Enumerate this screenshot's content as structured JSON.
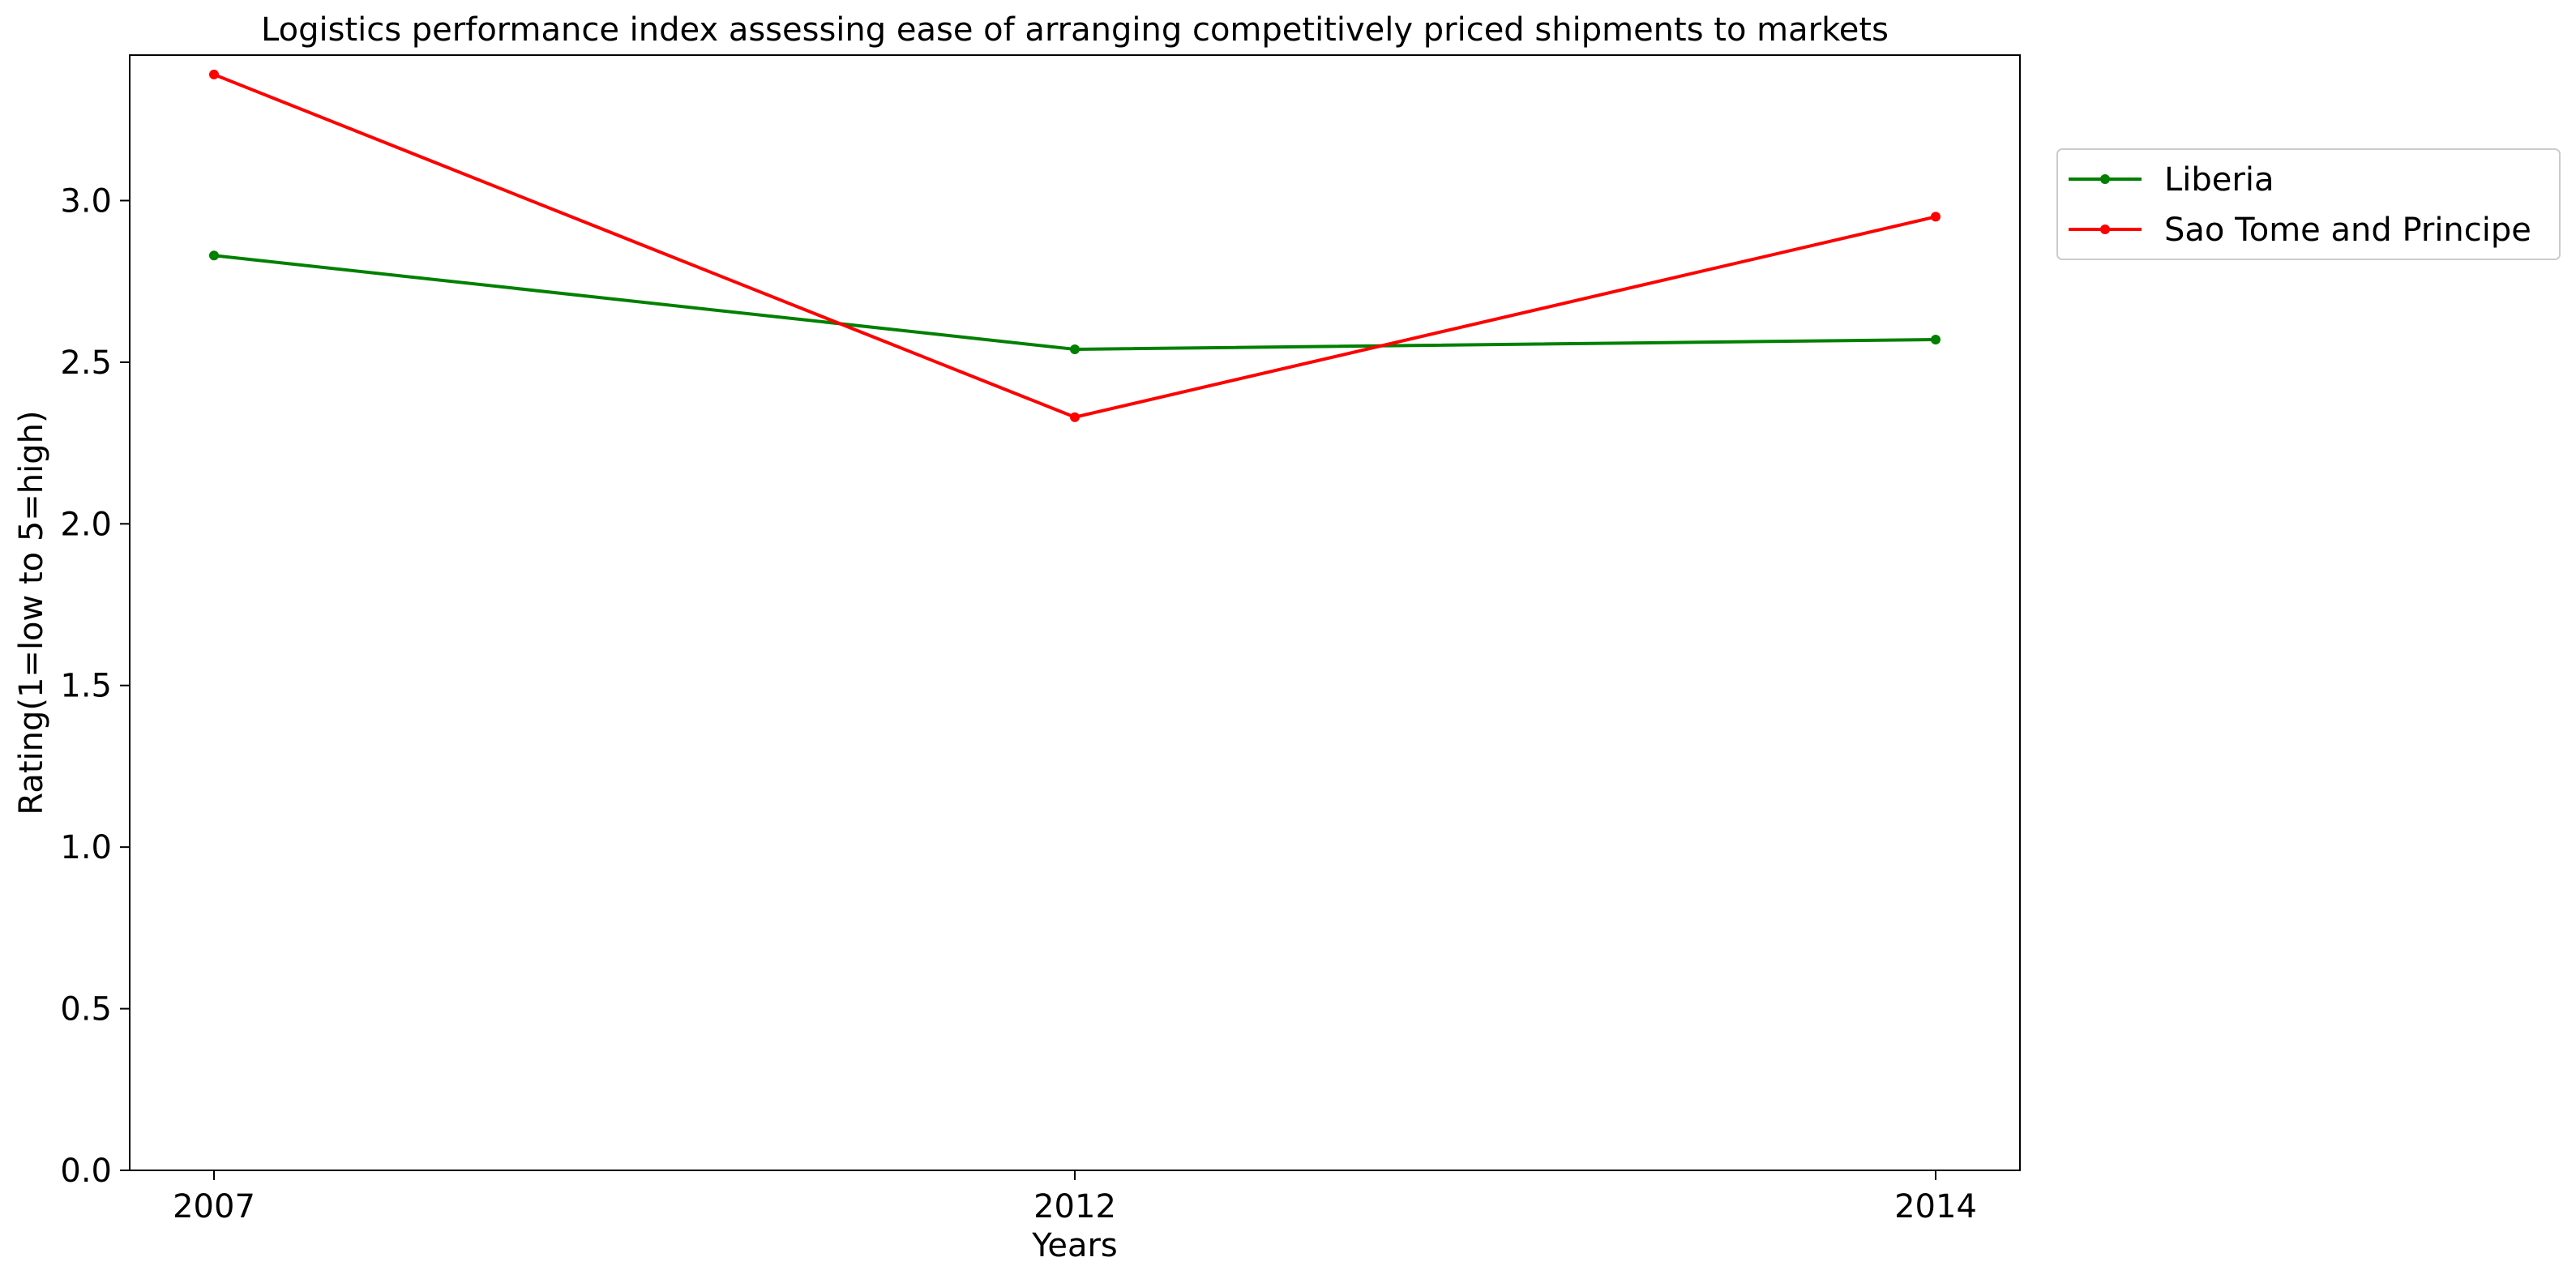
{
  "chart_data": {
    "type": "line",
    "title": "Logistics performance index assessing ease of arranging competitively priced shipments to markets",
    "xlabel": "Years",
    "ylabel": "Rating(1=low to 5=high)",
    "categories": [
      "2007",
      "2012",
      "2014"
    ],
    "ylim": [
      0,
      3.45
    ],
    "yticks": [
      0.0,
      0.5,
      1.0,
      1.5,
      2.0,
      2.5,
      3.0
    ],
    "ytick_labels": [
      "0.0",
      "0.5",
      "1.0",
      "1.5",
      "2.0",
      "2.5",
      "3.0"
    ],
    "grid": false,
    "legend_position": "outside-top-right",
    "series": [
      {
        "name": "Liberia",
        "color": "#008000",
        "values": [
          2.83,
          2.54,
          2.57
        ]
      },
      {
        "name": "Sao Tome and Principe",
        "color": "#ff0000",
        "values": [
          3.39,
          2.33,
          2.95
        ]
      }
    ]
  }
}
